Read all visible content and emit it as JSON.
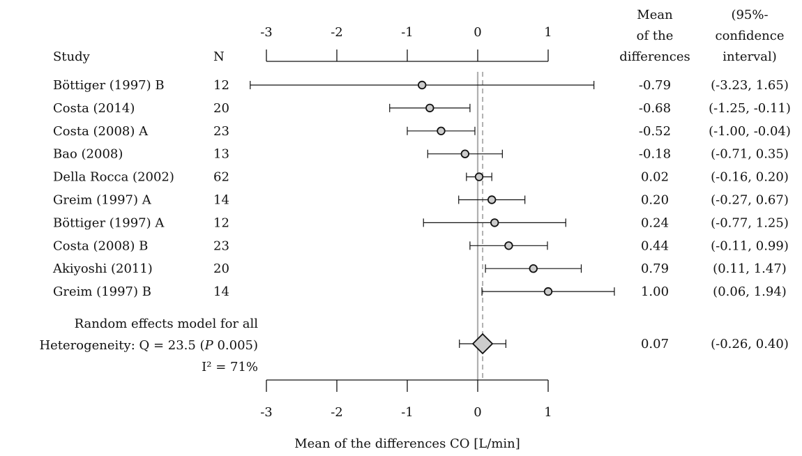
{
  "chart_data": {
    "type": "forest",
    "xlabel": "Mean of the differences CO [L/min]",
    "xlim": [
      -3,
      1
    ],
    "xticks": [
      -3,
      -2,
      -1,
      0,
      1
    ],
    "reference_line": 0,
    "header": {
      "study": "Study",
      "n": "N",
      "mean_lines": [
        "Mean",
        "of the",
        "differences"
      ],
      "ci_lines": [
        "(95%-",
        "confidence",
        "interval)"
      ]
    },
    "studies": [
      {
        "study": "Böttiger (1997) B",
        "n": "12",
        "mean": -0.79,
        "lower": -3.23,
        "upper": 1.65,
        "mean_label": "-0.79",
        "ci_label": "(-3.23, 1.65)"
      },
      {
        "study": "Costa (2014)",
        "n": "20",
        "mean": -0.68,
        "lower": -1.25,
        "upper": -0.11,
        "mean_label": "-0.68",
        "ci_label": "(-1.25, -0.11)"
      },
      {
        "study": "Costa (2008) A",
        "n": "23",
        "mean": -0.52,
        "lower": -1.0,
        "upper": -0.04,
        "mean_label": "-0.52",
        "ci_label": "(-1.00, -0.04)"
      },
      {
        "study": "Bao (2008)",
        "n": "13",
        "mean": -0.18,
        "lower": -0.71,
        "upper": 0.35,
        "mean_label": "-0.18",
        "ci_label": "(-0.71, 0.35)"
      },
      {
        "study": "Della Rocca (2002)",
        "n": "62",
        "mean": 0.02,
        "lower": -0.16,
        "upper": 0.2,
        "mean_label": "0.02",
        "ci_label": "(-0.16, 0.20)"
      },
      {
        "study": "Greim (1997) A",
        "n": "14",
        "mean": 0.2,
        "lower": -0.27,
        "upper": 0.67,
        "mean_label": "0.20",
        "ci_label": "(-0.27, 0.67)"
      },
      {
        "study": "Böttiger (1997) A",
        "n": "12",
        "mean": 0.24,
        "lower": -0.77,
        "upper": 1.25,
        "mean_label": "0.24",
        "ci_label": "(-0.77, 1.25)"
      },
      {
        "study": "Costa (2008) B",
        "n": "23",
        "mean": 0.44,
        "lower": -0.11,
        "upper": 0.99,
        "mean_label": "0.44",
        "ci_label": "(-0.11, 0.99)"
      },
      {
        "study": "Akiyoshi (2011)",
        "n": "20",
        "mean": 0.79,
        "lower": 0.11,
        "upper": 1.47,
        "mean_label": "0.79",
        "ci_label": "(0.11, 1.47)"
      },
      {
        "study": "Greim (1997) B",
        "n": "14",
        "mean": 1.0,
        "lower": 0.06,
        "upper": 1.94,
        "mean_label": "1.00",
        "ci_label": "(0.06, 1.94)"
      }
    ],
    "summary": {
      "label_lines": [
        "Random effects model for all",
        "Heterogeneity: Q = 23.5 (",
        "P",
        " 0.005)",
        "I² = 71%"
      ],
      "mean": 0.07,
      "lower": -0.26,
      "upper": 0.4,
      "mean_label": "0.07",
      "ci_label": "(-0.26, 0.40)"
    },
    "colors": {
      "marker_fill": "#cccccc",
      "diamond_fill": "#cccccc",
      "line": "#111111",
      "reference": "#b0b0b0"
    }
  }
}
